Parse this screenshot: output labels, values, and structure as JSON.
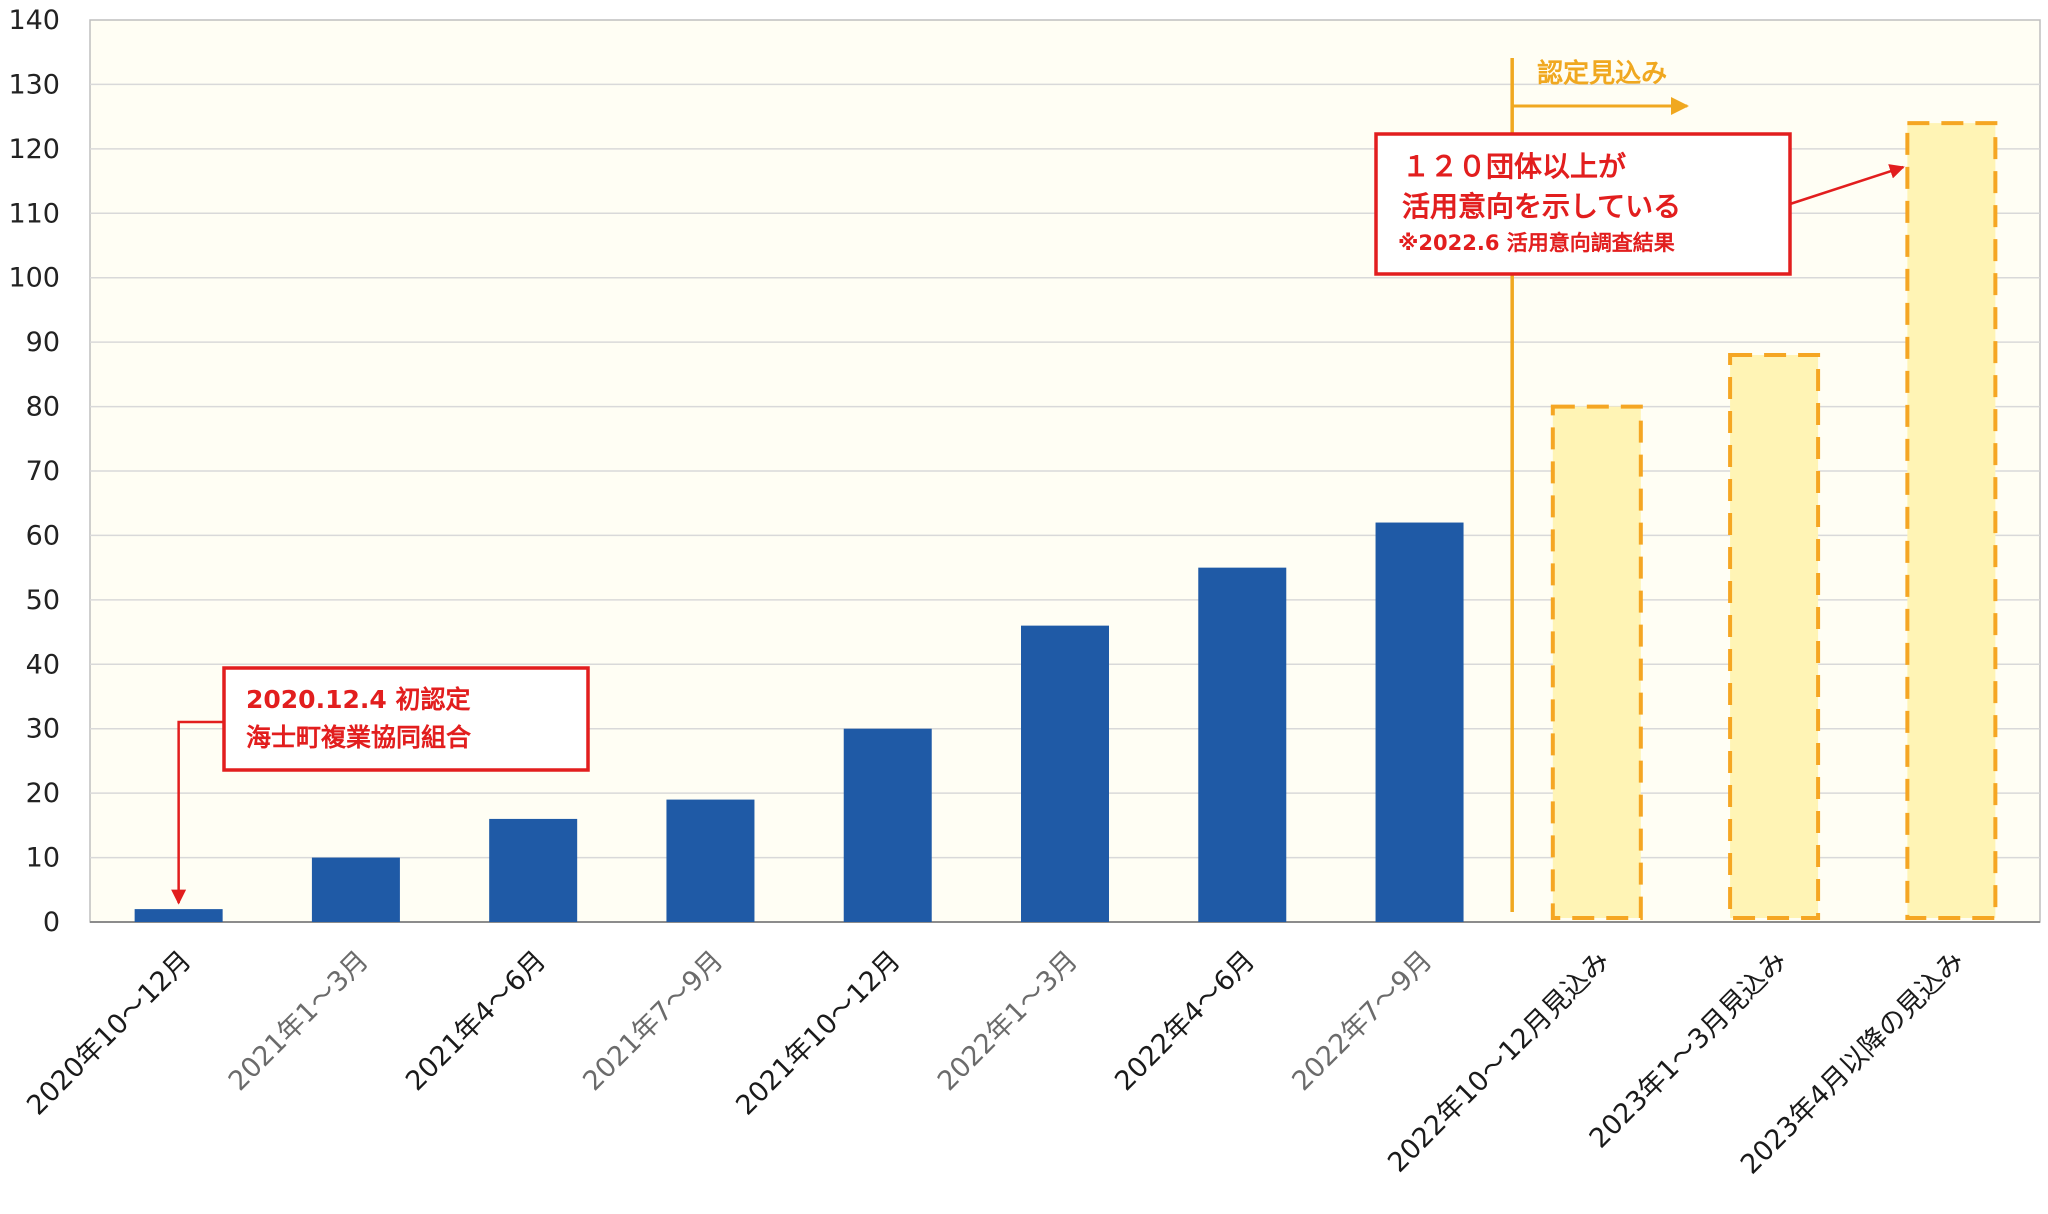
{
  "chart_data": {
    "type": "bar",
    "title": "",
    "xlabel": "",
    "ylabel": "",
    "ylim": [
      0,
      140
    ],
    "yticks": [
      0,
      10,
      20,
      30,
      40,
      50,
      60,
      70,
      80,
      90,
      100,
      110,
      120,
      130,
      140
    ],
    "grid": true,
    "categories": [
      "2020年10～12月",
      "2021年1～3月",
      "2021年4～6月",
      "2021年7～9月",
      "2021年10～12月",
      "2022年1～3月",
      "2022年4～6月",
      "2022年7～9月",
      "2022年10～12月見込み",
      "2023年1～3月見込み",
      "2023年4月以降の見込み"
    ],
    "series": [
      {
        "values": [
          2,
          10,
          16,
          19,
          30,
          46,
          55,
          62,
          null,
          null,
          null
        ]
      },
      {
        "values": [
          null,
          null,
          null,
          null,
          null,
          null,
          null,
          null,
          80,
          88,
          124
        ]
      }
    ],
    "colors": {
      "actual": "#1f5aa6",
      "forecast_fill": "#fff4b5",
      "forecast_border": "#f5a623",
      "annotation": "#e21e1e",
      "divider": "#f0a820",
      "plot_bg": "#fffef4",
      "grid": "#d9d9d9"
    },
    "annotations": {
      "first_cert": {
        "lines": [
          "2020.12.4  初認定",
          "海士町複業協同組合"
        ]
      },
      "intent": {
        "lines": [
          "１２０団体以上が",
          "活用意向を示している",
          "※2022.6  活用意向調査結果"
        ]
      },
      "forecast_divider": {
        "label": "認定見込み"
      }
    }
  }
}
